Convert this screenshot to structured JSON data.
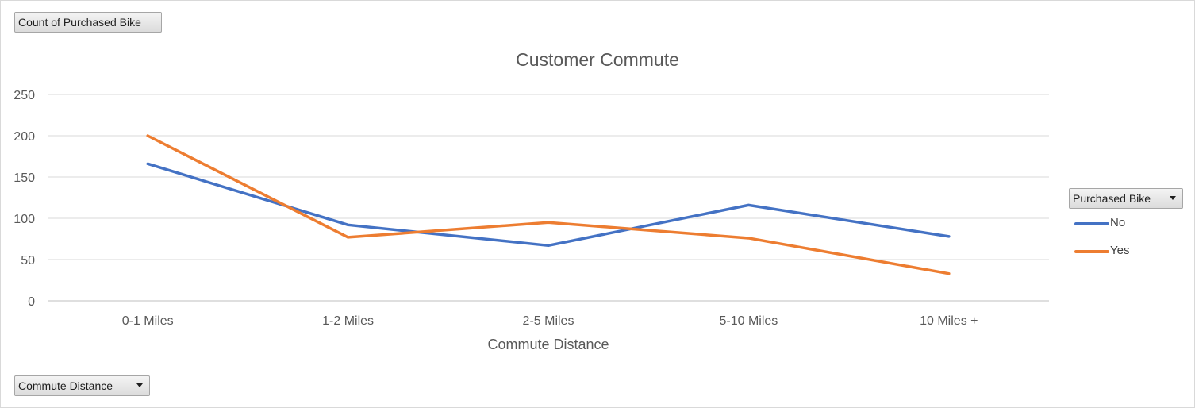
{
  "buttons": {
    "value_field": "Count of Purchased Bike",
    "axis_field": "Commute Distance",
    "legend_field": "Purchased Bike"
  },
  "chart_data": {
    "type": "line",
    "title": "Customer Commute",
    "xlabel": "Commute Distance",
    "ylabel": "",
    "categories": [
      "0-1 Miles",
      "1-2 Miles",
      "2-5 Miles",
      "5-10 Miles",
      "10 Miles +"
    ],
    "ylim": [
      0,
      250
    ],
    "yticks": [
      0,
      50,
      100,
      150,
      200,
      250
    ],
    "grid": true,
    "legend_position": "right",
    "series": [
      {
        "name": "No",
        "color": "#4472C4",
        "values": [
          166,
          92,
          67,
          116,
          78
        ]
      },
      {
        "name": "Yes",
        "color": "#ED7D31",
        "values": [
          200,
          77,
          95,
          76,
          33
        ]
      }
    ]
  }
}
